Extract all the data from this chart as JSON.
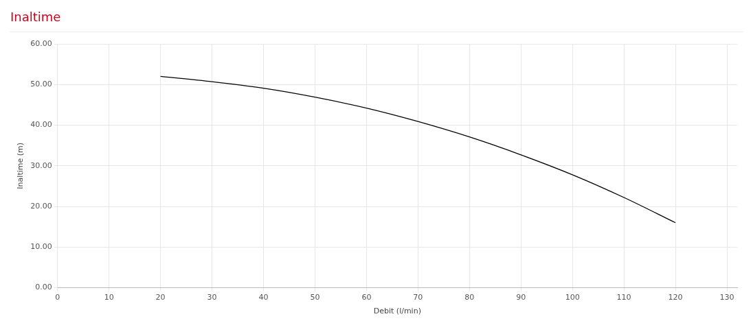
{
  "chart_data": {
    "type": "line",
    "title": "Inaltime",
    "xlabel": "Debit (l/min)",
    "ylabel": "Inaltime (m)",
    "x": [
      20,
      30,
      40,
      50,
      60,
      70,
      80,
      90,
      100,
      110,
      120
    ],
    "series": [
      {
        "color": "#000000",
        "values": [
          52.0,
          50.7,
          49.1,
          46.9,
          44.2,
          40.9,
          37.1,
          32.7,
          27.8,
          22.2,
          16.0
        ]
      }
    ],
    "xlim": [
      0,
      132
    ],
    "xticks": [
      0,
      10,
      20,
      30,
      40,
      50,
      60,
      70,
      80,
      90,
      100,
      110,
      120,
      130
    ],
    "ylim": [
      0,
      60
    ],
    "yticks": [
      {
        "value": 0,
        "label": "0.00"
      },
      {
        "value": 10,
        "label": "10.00"
      },
      {
        "value": 20,
        "label": "20.00"
      },
      {
        "value": 30,
        "label": "30.00"
      },
      {
        "value": 40,
        "label": "40.00"
      },
      {
        "value": 50,
        "label": "50.00"
      },
      {
        "value": 60,
        "label": "60.00"
      }
    ],
    "grid": true,
    "legend": false,
    "marker": "none",
    "line_style": "solid"
  }
}
